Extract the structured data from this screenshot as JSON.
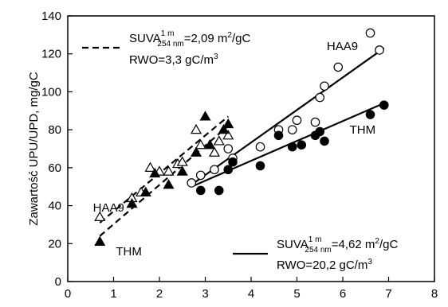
{
  "chart_data": {
    "type": "scatter",
    "title": "",
    "xlabel": "",
    "ylabel": "Zawartość UPU/UPD, mg/gC",
    "xlim": [
      0,
      8
    ],
    "ylim": [
      0,
      140
    ],
    "x_ticks": [
      0,
      1,
      2,
      3,
      4,
      5,
      6,
      7,
      8
    ],
    "y_ticks": [
      0,
      20,
      40,
      60,
      80,
      100,
      120,
      140
    ],
    "grid": false,
    "series": [
      {
        "name": "HAA9",
        "marker": "triangle-open",
        "group": "SUVA 2,09",
        "points": [
          [
            0.7,
            34
          ],
          [
            1.4,
            44
          ],
          [
            1.6,
            47
          ],
          [
            1.8,
            60
          ],
          [
            2.0,
            58
          ],
          [
            2.2,
            58
          ],
          [
            2.4,
            62
          ],
          [
            2.5,
            63
          ],
          [
            2.8,
            80
          ],
          [
            2.9,
            72
          ],
          [
            3.2,
            68
          ],
          [
            3.3,
            74
          ],
          [
            3.5,
            77
          ]
        ]
      },
      {
        "name": "THM",
        "marker": "triangle-filled",
        "group": "SUVA 2,09",
        "points": [
          [
            0.7,
            21
          ],
          [
            1.4,
            41
          ],
          [
            1.7,
            47
          ],
          [
            1.9,
            57
          ],
          [
            2.2,
            51
          ],
          [
            2.5,
            58
          ],
          [
            2.8,
            68
          ],
          [
            3.0,
            87
          ],
          [
            3.1,
            72
          ],
          [
            3.4,
            80
          ],
          [
            3.5,
            83
          ]
        ]
      },
      {
        "name": "HAA9",
        "marker": "circle-open",
        "group": "SUVA 4,62",
        "points": [
          [
            2.7,
            52
          ],
          [
            2.9,
            56
          ],
          [
            3.2,
            59
          ],
          [
            3.5,
            70
          ],
          [
            3.6,
            65
          ],
          [
            4.2,
            71
          ],
          [
            4.6,
            80
          ],
          [
            4.9,
            80
          ],
          [
            5.0,
            85
          ],
          [
            5.4,
            84
          ],
          [
            5.5,
            97
          ],
          [
            5.6,
            103
          ],
          [
            5.9,
            113
          ],
          [
            6.6,
            131
          ],
          [
            6.8,
            122
          ]
        ]
      },
      {
        "name": "THM",
        "marker": "circle-filled",
        "group": "SUVA 4,62",
        "points": [
          [
            2.9,
            48
          ],
          [
            3.3,
            48
          ],
          [
            3.5,
            59
          ],
          [
            3.6,
            63
          ],
          [
            4.2,
            61
          ],
          [
            4.6,
            77
          ],
          [
            4.9,
            71
          ],
          [
            5.1,
            72
          ],
          [
            5.4,
            77
          ],
          [
            5.5,
            79
          ],
          [
            5.6,
            74
          ],
          [
            6.6,
            88
          ],
          [
            6.9,
            93
          ]
        ]
      }
    ],
    "trend_lines": [
      {
        "series": "HAA9",
        "group": "SUVA 2,09",
        "style": "dashed",
        "from": [
          0.7,
          31
        ],
        "to": [
          3.5,
          87
        ]
      },
      {
        "series": "THM",
        "group": "SUVA 2,09",
        "style": "dashed",
        "from": [
          0.7,
          24
        ],
        "to": [
          3.5,
          82
        ]
      },
      {
        "series": "HAA9",
        "group": "SUVA 4,62",
        "style": "solid",
        "from": [
          2.7,
          51
        ],
        "to": [
          6.9,
          123
        ]
      },
      {
        "series": "THM",
        "group": "SUVA 4,62",
        "style": "solid",
        "from": [
          2.7,
          50
        ],
        "to": [
          6.9,
          94
        ]
      }
    ],
    "annotations": [
      {
        "id": "lbl-haa9-left",
        "text": "HAA9",
        "x": 0.55,
        "y": 39
      },
      {
        "id": "lbl-thm-left",
        "text": "THM",
        "x": 1.05,
        "y": 16
      },
      {
        "id": "lbl-haa9-right",
        "text": "HAA9",
        "x": 5.65,
        "y": 124
      },
      {
        "id": "lbl-thm-right",
        "text": "THM",
        "x": 6.15,
        "y": 80
      }
    ],
    "legend": [
      {
        "style": "dashed",
        "suva_prefix": "SUVA",
        "suva_sub": "254 nm",
        "suva_sup": "1 m",
        "suva_value": "=2,09 m",
        "unit_sup": "2",
        "unit_tail": "/gC",
        "rwo_text": "RWO=3,3 gC/m",
        "rwo_sup": "3"
      },
      {
        "style": "solid",
        "suva_prefix": "SUVA",
        "suva_sub": "254 nm",
        "suva_sup": "1 m",
        "suva_value": "=4,62 m",
        "unit_sup": "2",
        "unit_tail": "/gC",
        "rwo_text": "RWO=20,2 gC/m",
        "rwo_sup": "3"
      }
    ]
  }
}
